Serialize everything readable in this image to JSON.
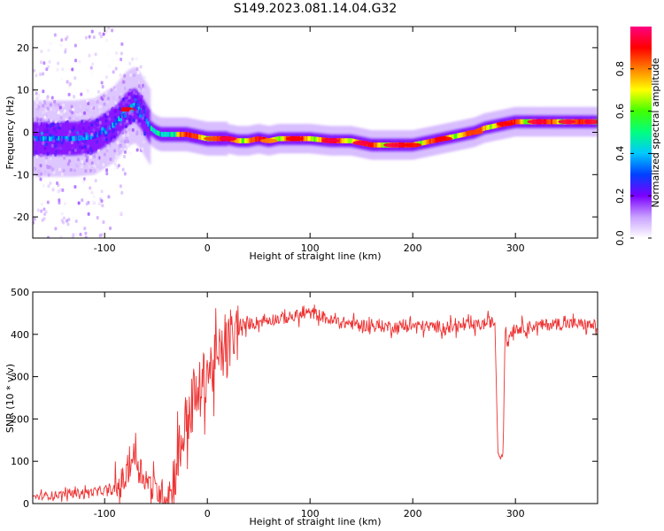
{
  "title": "S149.2023.081.14.04.G32",
  "chart_data": [
    {
      "type": "heatmap",
      "xlabel": "Height of straight line (km)",
      "ylabel": "Frequency (Hz)",
      "xlim": [
        -170,
        380
      ],
      "ylim": [
        -25,
        25
      ],
      "xticks": [
        -100,
        0,
        100,
        200,
        300
      ],
      "yticks": [
        -20,
        -10,
        0,
        10,
        20
      ],
      "colorbar": {
        "label": "Normalized spectral amplitude",
        "range": [
          0,
          1
        ],
        "ticks": [
          0.0,
          0.2,
          0.4,
          0.6,
          0.8
        ],
        "tick_labels": [
          "0.0",
          "0.2",
          "0.4",
          "0.6",
          "0.8"
        ],
        "colormap": "gist_rainbow_r",
        "colors": [
          "#ffffff",
          "#c8a0ff",
          "#7b00ff",
          "#0040ff",
          "#00c8ff",
          "#00ff80",
          "#40ff00",
          "#ffff00",
          "#ff8000",
          "#ff0000",
          "#ff0080"
        ]
      },
      "ridge": {
        "x": [
          -170,
          -150,
          -130,
          -110,
          -100,
          -90,
          -85,
          -80,
          -75,
          -70,
          -65,
          -60,
          -55,
          -50,
          -45,
          -40,
          -35,
          -30,
          -20,
          -10,
          0,
          10,
          20,
          30,
          40,
          50,
          60,
          70,
          80,
          100,
          120,
          140,
          160,
          180,
          200,
          210,
          220,
          230,
          240,
          250,
          260,
          270,
          280,
          290,
          300,
          320,
          340,
          360,
          380
        ],
        "y": [
          -1.5,
          -1.5,
          -1.5,
          -1.0,
          0.5,
          2.0,
          3.5,
          5.0,
          6.0,
          6.5,
          5.0,
          3.0,
          1.0,
          0.0,
          -0.5,
          -0.5,
          -0.5,
          -0.5,
          -0.5,
          -1.0,
          -1.5,
          -1.5,
          -1.5,
          -2.0,
          -2.0,
          -1.5,
          -2.0,
          -1.5,
          -1.5,
          -1.5,
          -2.0,
          -2.0,
          -3.0,
          -3.0,
          -3.0,
          -2.5,
          -2.0,
          -1.5,
          -1.0,
          -0.5,
          0.0,
          1.0,
          1.5,
          2.0,
          2.5,
          2.5,
          2.5,
          2.5,
          2.5
        ]
      }
    },
    {
      "type": "line",
      "xlabel": "Height of straight line (km)",
      "ylabel": "SNR (10 * v/v)",
      "xlim": [
        -170,
        380
      ],
      "ylim": [
        0,
        500
      ],
      "xticks": [
        -100,
        0,
        100,
        200,
        300
      ],
      "yticks": [
        0,
        100,
        200,
        300,
        400,
        500
      ],
      "color": "#ee3333",
      "series": [
        {
          "x": [
            -170,
            -150,
            -130,
            -110,
            -100,
            -90,
            -80,
            -75,
            -70,
            -65,
            -60,
            -55,
            -50,
            -45,
            -40,
            -35,
            -30,
            -25,
            -20,
            -15,
            -10,
            -5,
            0,
            5,
            10,
            15,
            20,
            25,
            30,
            40,
            60,
            80,
            90,
            100,
            110,
            120,
            140,
            160,
            180,
            200,
            220,
            240,
            260,
            270,
            275,
            280,
            283,
            285,
            288,
            290,
            292,
            295,
            300,
            320,
            340,
            360,
            380
          ],
          "y": [
            15,
            20,
            25,
            28,
            30,
            30,
            60,
            100,
            115,
            80,
            60,
            40,
            30,
            25,
            20,
            25,
            100,
            150,
            200,
            230,
            250,
            280,
            320,
            320,
            340,
            360,
            370,
            390,
            410,
            425,
            435,
            440,
            445,
            450,
            445,
            432,
            425,
            420,
            418,
            420,
            418,
            418,
            420,
            425,
            430,
            425,
            120,
            110,
            120,
            420,
            375,
            405,
            415,
            420,
            425,
            425,
            420
          ]
        }
      ]
    }
  ]
}
